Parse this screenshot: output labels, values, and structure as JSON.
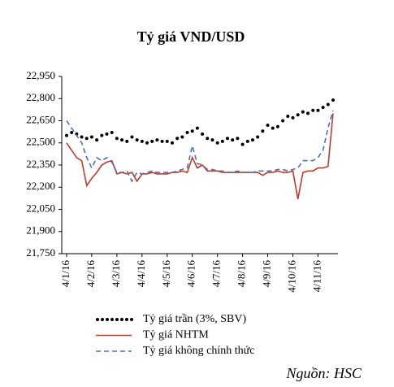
{
  "chart_data": {
    "type": "line",
    "title": "Tỷ giá VND/USD",
    "source": "Nguồn: HSC",
    "categories": [
      "4/1/16",
      null,
      null,
      null,
      null,
      "4/2/16",
      null,
      null,
      null,
      null,
      "4/3/16",
      null,
      null,
      null,
      null,
      "4/4/16",
      null,
      null,
      null,
      null,
      "4/5/16",
      null,
      null,
      null,
      null,
      "4/6/16",
      null,
      null,
      null,
      null,
      "4/7/16",
      null,
      null,
      null,
      null,
      "4/8/16",
      null,
      null,
      null,
      null,
      "4/9/16",
      null,
      null,
      null,
      null,
      "4/10/16",
      null,
      null,
      null,
      null,
      "4/11/16",
      null,
      null,
      null
    ],
    "series": [
      {
        "name": "Tỷ giá trần (3%, SBV)",
        "color": "#000000",
        "style": "dots",
        "values": [
          22550,
          22570,
          22560,
          22540,
          22530,
          22540,
          22520,
          22550,
          22560,
          22570,
          22530,
          22520,
          22510,
          22540,
          22520,
          22510,
          22500,
          22510,
          22520,
          22510,
          22510,
          22500,
          22530,
          22540,
          22570,
          22580,
          22600,
          22560,
          22530,
          22520,
          22500,
          22510,
          22530,
          22520,
          22530,
          22490,
          22510,
          22520,
          22540,
          22580,
          22620,
          22600,
          22610,
          22650,
          22680,
          22670,
          22690,
          22710,
          22700,
          22720,
          22720,
          22740,
          22760,
          22790
        ]
      },
      {
        "name": "Tỷ giá NHTM",
        "color": "#c0392b",
        "style": "solid",
        "values": [
          22500,
          22450,
          22400,
          22380,
          22210,
          22260,
          22300,
          22350,
          22370,
          22380,
          22290,
          22300,
          22290,
          22300,
          22240,
          22290,
          22290,
          22300,
          22290,
          22290,
          22290,
          22300,
          22300,
          22310,
          22300,
          22400,
          22330,
          22350,
          22310,
          22310,
          22310,
          22300,
          22300,
          22300,
          22300,
          22300,
          22300,
          22300,
          22300,
          22280,
          22300,
          22300,
          22310,
          22300,
          22300,
          22310,
          22120,
          22300,
          22310,
          22310,
          22330,
          22330,
          22340,
          22700
        ]
      },
      {
        "name": "Tỷ giá không chính thức",
        "color": "#4a72b8",
        "style": "dashed",
        "values": [
          22650,
          22600,
          22550,
          22500,
          22400,
          22330,
          22400,
          22380,
          22400,
          22370,
          22300,
          22300,
          22310,
          22240,
          22300,
          22290,
          22300,
          22310,
          22300,
          22300,
          22300,
          22300,
          22310,
          22320,
          22330,
          22480,
          22360,
          22350,
          22320,
          22320,
          22310,
          22310,
          22300,
          22300,
          22310,
          22300,
          22300,
          22300,
          22310,
          22310,
          22310,
          22310,
          22320,
          22320,
          22310,
          22320,
          22330,
          22380,
          22380,
          22380,
          22400,
          22450,
          22600,
          22720
        ]
      }
    ],
    "ylim": [
      21750,
      22950
    ],
    "yticks": [
      {
        "value": 21750,
        "label": "21,750"
      },
      {
        "value": 21900,
        "label": "21,900"
      },
      {
        "value": 22050,
        "label": "22,050"
      },
      {
        "value": 22200,
        "label": "22,200"
      },
      {
        "value": 22350,
        "label": "22,350"
      },
      {
        "value": 22500,
        "label": "22,500"
      },
      {
        "value": 22650,
        "label": "22,650"
      },
      {
        "value": 22800,
        "label": "22,800"
      },
      {
        "value": 22950,
        "label": "22,950"
      }
    ],
    "grid": false
  }
}
